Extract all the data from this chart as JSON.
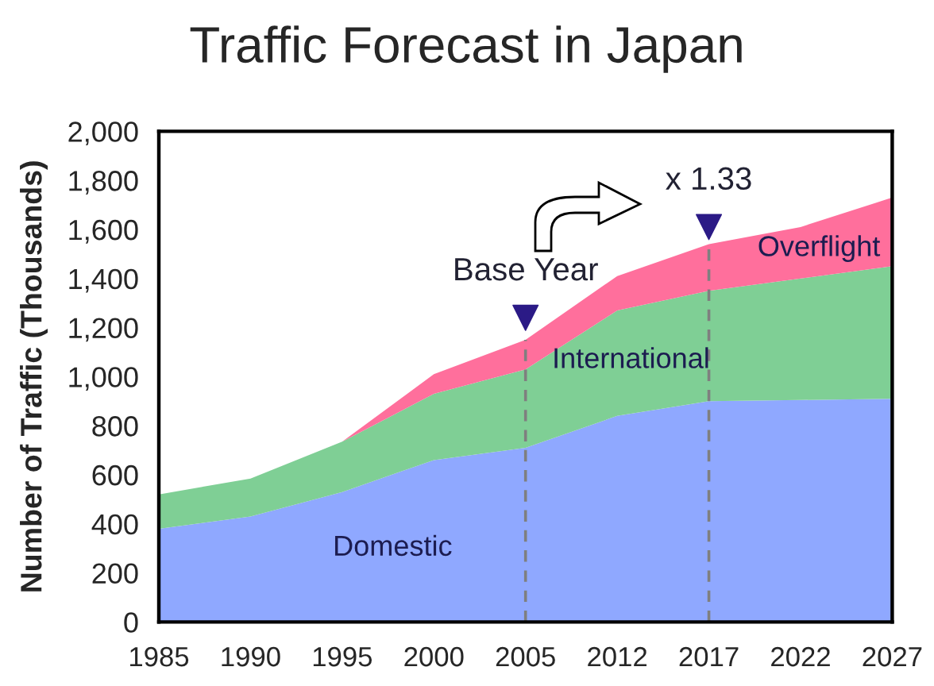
{
  "chart_data": {
    "type": "area",
    "title": "Traffic Forecast in Japan",
    "ylabel": "Number of Traffic (Thousands)",
    "categories": [
      "1985",
      "1990",
      "1995",
      "2000",
      "2005",
      "2012",
      "2017",
      "2022",
      "2027"
    ],
    "stacked": true,
    "ylim": [
      0,
      2000
    ],
    "yticks": [
      0,
      200,
      400,
      600,
      800,
      {
        "value": 1000,
        "label": "1,000"
      },
      {
        "value": 1200,
        "label": "1,200"
      },
      {
        "value": 1400,
        "label": "1,400"
      },
      {
        "value": 1600,
        "label": "1,600"
      },
      {
        "value": 1800,
        "label": "1,800"
      },
      {
        "value": 2000,
        "label": "2,000"
      }
    ],
    "grid": false,
    "legend": false,
    "series": [
      {
        "name": "Domestic",
        "color": "#8fa8ff",
        "values": [
          380,
          430,
          530,
          660,
          710,
          840,
          900,
          905,
          910
        ]
      },
      {
        "name": "International",
        "color": "#7fcf95",
        "values": [
          140,
          155,
          205,
          270,
          320,
          430,
          450,
          495,
          540
        ]
      },
      {
        "name": "Overflight",
        "color": "#ff6f9c",
        "values": [
          0,
          0,
          0,
          80,
          120,
          140,
          190,
          210,
          280
        ]
      },
      {
        "type": "scatter",
        "color": "#2b1a86",
        "marker": "triangle",
        "values": [
          null,
          null,
          null,
          null,
          1240,
          null,
          1610,
          null,
          null
        ]
      }
    ],
    "ref_lines": [
      {
        "axis": "x",
        "value": "2005",
        "color": "#7f7f7f",
        "line_style": "dashed"
      },
      {
        "axis": "x",
        "value": "2017",
        "color": "#7f7f7f",
        "line_style": "dashed"
      }
    ],
    "annotations": [
      {
        "text": "Base Year",
        "x": "2005",
        "y": 1240
      },
      {
        "text": "x 1.33",
        "x": "2017",
        "y": 1610
      }
    ]
  }
}
